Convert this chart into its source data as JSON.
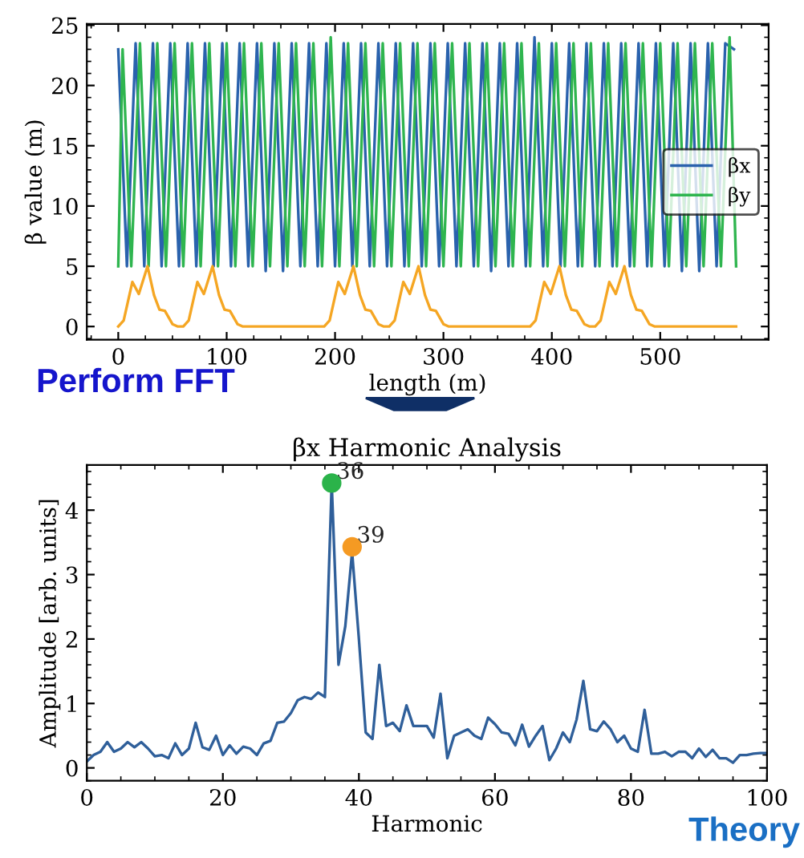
{
  "chart_data": [
    {
      "type": "line",
      "xlabel": "length (m)",
      "ylabel": "β value (m)",
      "xlim": [
        -29,
        600
      ],
      "ylim": [
        -1.1,
        25.1
      ],
      "xticks": [
        0,
        100,
        200,
        300,
        400,
        500
      ],
      "yticks": [
        0,
        5,
        10,
        15,
        20,
        25
      ],
      "legend": "center right",
      "grid": false,
      "series": [
        {
          "name": "βx",
          "color": "#2a62ad",
          "x": [
            0,
            8,
            16,
            24,
            32,
            40,
            48,
            56,
            64,
            72,
            80,
            88,
            96,
            104,
            112,
            120,
            128,
            136,
            144,
            152,
            160,
            168,
            176,
            184,
            192,
            200,
            208,
            216,
            224,
            232,
            240,
            248,
            256,
            264,
            272,
            280,
            288,
            296,
            304,
            312,
            320,
            328,
            336,
            344,
            352,
            360,
            368,
            376,
            384,
            392,
            400,
            408,
            416,
            424,
            432,
            440,
            448,
            456,
            464,
            472,
            480,
            488,
            496,
            504,
            512,
            520,
            528,
            536,
            544,
            552,
            560,
            568
          ],
          "values": [
            23,
            5,
            23.5,
            5,
            23.5,
            5,
            23.5,
            5,
            23.5,
            5,
            23.5,
            5,
            23.5,
            5,
            23.5,
            5,
            23.5,
            4.6,
            23.5,
            4.6,
            23.5,
            5,
            23.5,
            5,
            23.5,
            5,
            23.5,
            5,
            23.5,
            5,
            23.5,
            5,
            23.5,
            5,
            23.5,
            5,
            23.5,
            5,
            23.5,
            5,
            23.5,
            5,
            23.5,
            4.6,
            23.5,
            5,
            23.5,
            5,
            24,
            5,
            23.5,
            5,
            23.5,
            5,
            23.5,
            5,
            23.5,
            5,
            23.5,
            5,
            23.5,
            5,
            23.5,
            5,
            23.5,
            4.6,
            23.5,
            4.6,
            23.5,
            5,
            23.5,
            23
          ]
        },
        {
          "name": "βy",
          "color": "#2fb54f",
          "x": [
            0,
            4,
            12,
            20,
            28,
            36,
            44,
            52,
            60,
            68,
            76,
            84,
            92,
            100,
            108,
            116,
            124,
            132,
            140,
            148,
            156,
            164,
            172,
            180,
            188,
            196,
            204,
            212,
            220,
            228,
            236,
            244,
            252,
            260,
            268,
            276,
            284,
            292,
            300,
            308,
            316,
            324,
            332,
            340,
            348,
            356,
            364,
            372,
            380,
            388,
            396,
            404,
            412,
            420,
            428,
            436,
            444,
            452,
            460,
            468,
            476,
            484,
            492,
            500,
            508,
            516,
            524,
            532,
            540,
            548,
            556,
            564,
            570
          ],
          "values": [
            5,
            23,
            5,
            23.5,
            5,
            23.5,
            5,
            23.5,
            5,
            23.5,
            5,
            23.5,
            5,
            23.5,
            5,
            23.5,
            5,
            23.5,
            5,
            23.5,
            5,
            23.5,
            5,
            23.5,
            5,
            24,
            5,
            23.5,
            5,
            23.5,
            5,
            23.5,
            5,
            23.5,
            5,
            23.5,
            5,
            23.5,
            5,
            23.5,
            5,
            23.5,
            5,
            23.5,
            5,
            23.5,
            5,
            23.5,
            5,
            23.5,
            5,
            23.5,
            5,
            23.5,
            5,
            23.5,
            5,
            23.5,
            5,
            23.5,
            5,
            23.5,
            5,
            23.5,
            5,
            23.5,
            5,
            23.5,
            5,
            23.5,
            5,
            24,
            5
          ]
        },
        {
          "color": "#f5a623",
          "x": [
            0,
            5,
            13,
            19,
            27,
            33,
            38,
            43,
            50,
            55,
            60,
            65,
            73,
            79,
            87,
            93,
            98,
            103,
            110,
            115,
            190,
            195,
            203,
            209,
            217,
            223,
            228,
            233,
            240,
            245,
            250,
            255,
            263,
            269,
            277,
            283,
            288,
            293,
            300,
            305,
            380,
            385,
            393,
            399,
            407,
            413,
            418,
            423,
            430,
            435,
            440,
            445,
            453,
            459,
            467,
            473,
            478,
            483,
            490,
            495,
            570
          ],
          "values": [
            0,
            0.5,
            3.7,
            2.7,
            5,
            2.6,
            1.4,
            1.3,
            0.2,
            0,
            0,
            0.5,
            3.7,
            2.7,
            5,
            2.6,
            1.4,
            1.3,
            0.2,
            0,
            0,
            0.5,
            3.7,
            2.7,
            5,
            2.6,
            1.4,
            1.3,
            0.2,
            0,
            0,
            0.5,
            3.7,
            2.7,
            5,
            2.6,
            1.4,
            1.3,
            0.2,
            0,
            0,
            0.5,
            3.7,
            2.7,
            5,
            2.6,
            1.4,
            1.3,
            0.2,
            0,
            0,
            0.5,
            3.7,
            2.7,
            5,
            2.6,
            1.4,
            1.3,
            0.2,
            0,
            0
          ]
        }
      ]
    },
    {
      "type": "line",
      "title": "βx Harmonic Analysis",
      "xlabel": "Harmonic",
      "ylabel": "Amplitude [arb. units]",
      "xlim": [
        0,
        100
      ],
      "ylim": [
        -0.2,
        4.7
      ],
      "xticks": [
        0,
        20,
        40,
        60,
        80,
        100
      ],
      "yticks": [
        0,
        1,
        2,
        3,
        4
      ],
      "grid": false,
      "annotations": [
        "Perform FFT",
        "Theory",
        {
          "text": "36",
          "x": 36,
          "y": 4.42
        },
        {
          "text": "39",
          "x": 39,
          "y": 3.43
        }
      ],
      "series": [
        {
          "color": "#2f5f9a",
          "x": [
            0,
            1,
            2,
            3,
            4,
            5,
            6,
            7,
            8,
            9,
            10,
            11,
            12,
            13,
            14,
            15,
            16,
            17,
            18,
            19,
            20,
            21,
            22,
            23,
            24,
            25,
            26,
            27,
            28,
            29,
            30,
            31,
            32,
            33,
            34,
            35,
            36,
            37,
            38,
            39,
            40,
            41,
            42,
            43,
            44,
            45,
            46,
            47,
            48,
            49,
            50,
            51,
            52,
            53,
            54,
            55,
            56,
            57,
            58,
            59,
            60,
            61,
            62,
            63,
            64,
            65,
            66,
            67,
            68,
            69,
            70,
            71,
            72,
            73,
            74,
            75,
            76,
            77,
            78,
            79,
            80,
            81,
            82,
            83,
            84,
            85,
            86,
            87,
            88,
            89,
            90,
            91,
            92,
            93,
            94,
            95,
            96,
            97,
            98,
            99,
            100
          ],
          "values": [
            0.1,
            0.2,
            0.25,
            0.4,
            0.25,
            0.3,
            0.4,
            0.32,
            0.4,
            0.3,
            0.18,
            0.2,
            0.15,
            0.38,
            0.2,
            0.3,
            0.7,
            0.32,
            0.28,
            0.5,
            0.2,
            0.35,
            0.22,
            0.33,
            0.3,
            0.2,
            0.38,
            0.42,
            0.7,
            0.72,
            0.85,
            1.05,
            1.1,
            1.07,
            1.17,
            1.1,
            4.42,
            1.6,
            2.2,
            3.35,
            2.0,
            0.55,
            0.45,
            1.6,
            0.65,
            0.7,
            0.57,
            0.97,
            0.65,
            0.65,
            0.65,
            0.47,
            1.15,
            0.15,
            0.5,
            0.55,
            0.6,
            0.5,
            0.45,
            0.78,
            0.68,
            0.55,
            0.53,
            0.35,
            0.67,
            0.33,
            0.5,
            0.65,
            0.12,
            0.3,
            0.55,
            0.4,
            0.75,
            1.35,
            0.6,
            0.57,
            0.72,
            0.6,
            0.4,
            0.5,
            0.3,
            0.25,
            0.9,
            0.22,
            0.22,
            0.25,
            0.18,
            0.25,
            0.25,
            0.15,
            0.3,
            0.17,
            0.28,
            0.15,
            0.15,
            0.08,
            0.2,
            0.2,
            0.22,
            0.23,
            0.23
          ]
        },
        {
          "type": "scatter",
          "x": [
            36,
            39
          ],
          "values": [
            4.42,
            3.43
          ],
          "colors": [
            "#2bb34a",
            "#f59a23"
          ],
          "marker": "circle"
        }
      ]
    }
  ]
}
